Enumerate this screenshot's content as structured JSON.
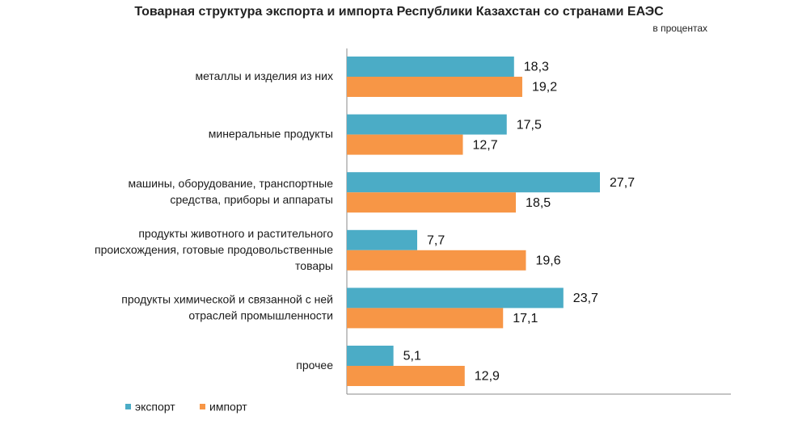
{
  "chart_data": {
    "type": "bar",
    "orientation": "horizontal",
    "title": "Товарная структура экспорта и импорта Республики Казахстан со странами ЕАЭС",
    "units": "в процентах",
    "categories": [
      [
        "металлы и изделия из них"
      ],
      [
        "минеральные продукты"
      ],
      [
        "машины, оборудование, транспортные",
        "средства, приборы и аппараты"
      ],
      [
        "продукты животного и растительного",
        "происхождения, готовые продовольственные",
        "товары"
      ],
      [
        "продукты химической и связанной с ней",
        "отраслей промышленности"
      ],
      [
        "прочее"
      ]
    ],
    "series": [
      {
        "name": "экспорт",
        "color": "#4bacc6",
        "values": [
          18.3,
          17.5,
          27.7,
          7.7,
          23.7,
          5.1
        ],
        "labels": [
          "18,3",
          "17,5",
          "27,7",
          "7,7",
          "23,7",
          "5,1"
        ]
      },
      {
        "name": "импорт",
        "color": "#f79646",
        "values": [
          19.2,
          12.7,
          18.5,
          19.6,
          17.1,
          12.9
        ],
        "labels": [
          "19,2",
          "12,7",
          "18,5",
          "19,6",
          "17,1",
          "12,9"
        ]
      }
    ],
    "xlim": [
      0,
      40
    ],
    "legend": "bottom-left"
  }
}
